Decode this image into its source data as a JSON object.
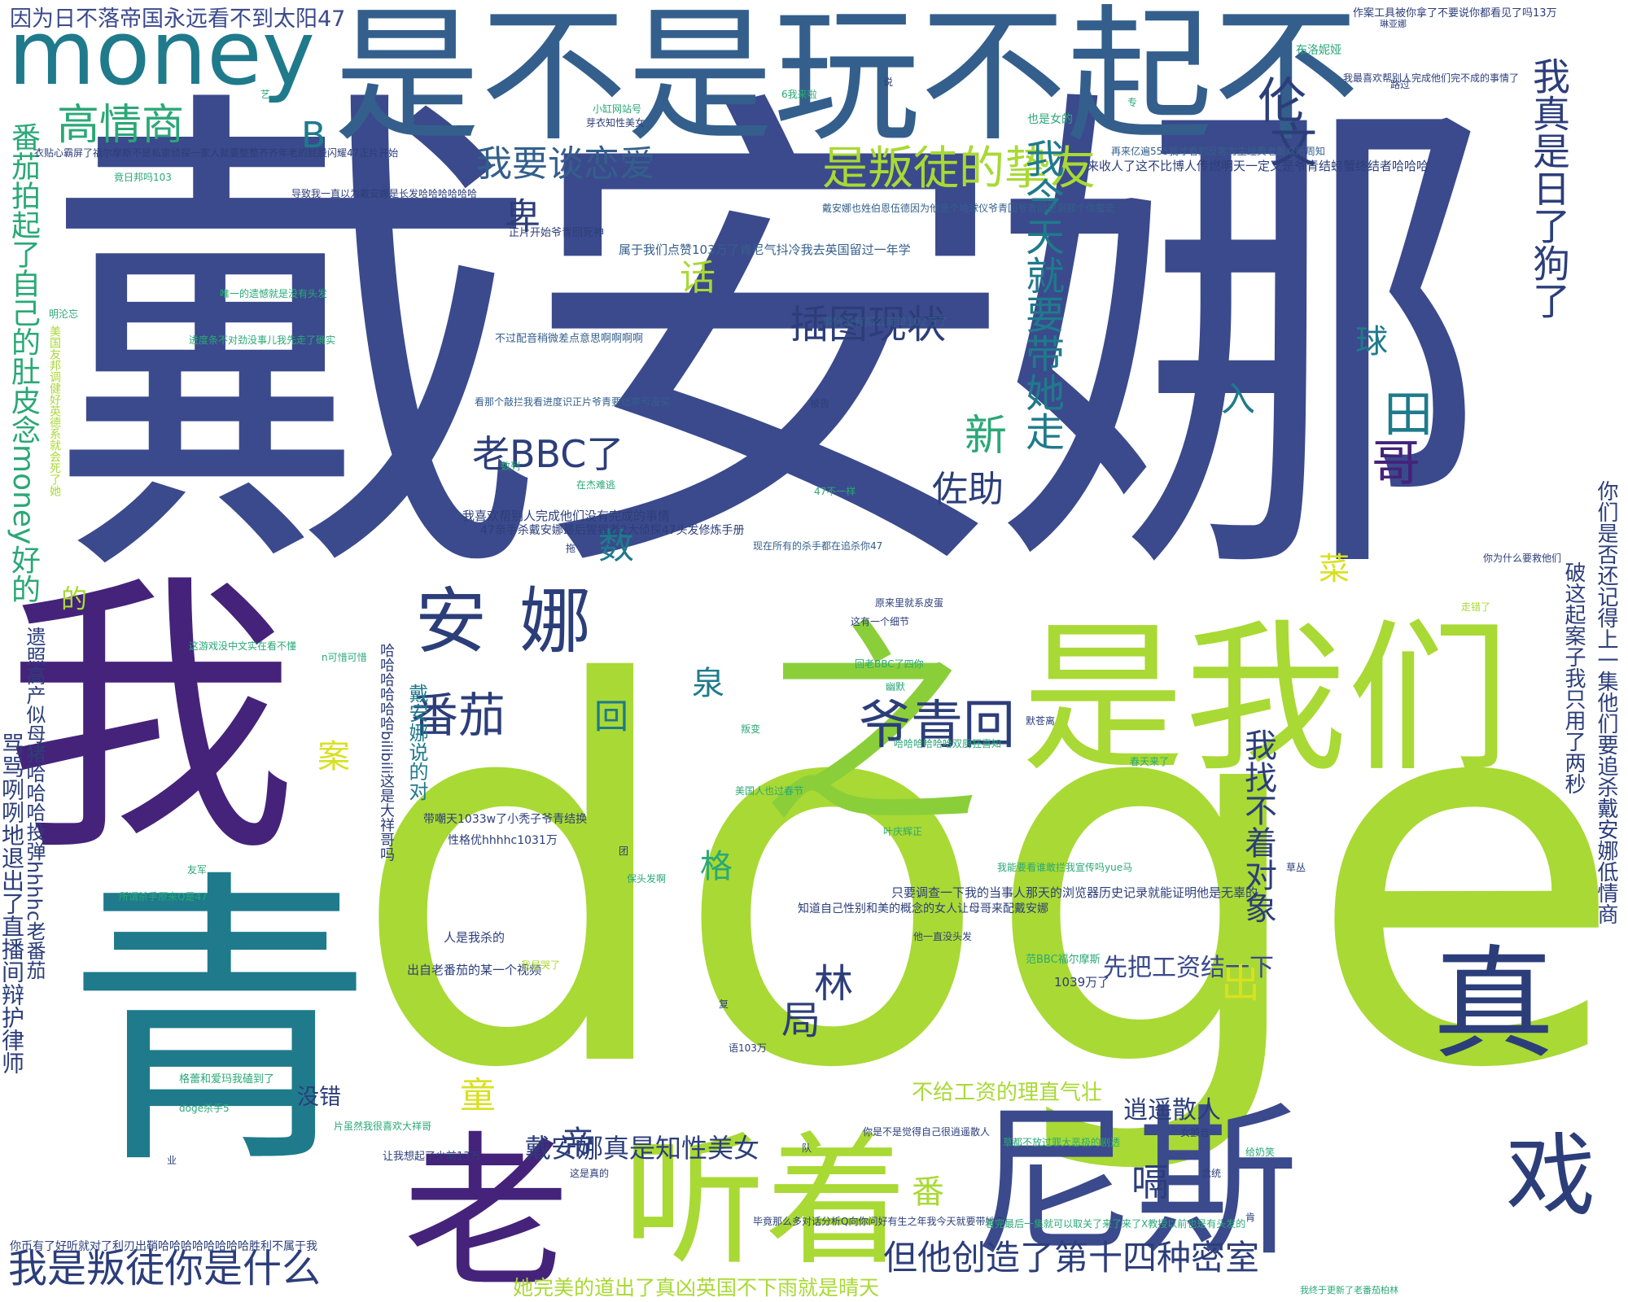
{
  "palette": {
    "indigo": "#3b4a8c",
    "navy": "#2c3e7a",
    "purple": "#45237a",
    "teal": "#1f7a8c",
    "green": "#2aa876",
    "lime": "#a9d934",
    "yellow": "#d9e021",
    "slate": "#345f8c"
  },
  "words": [
    {
      "text": "戴安娜",
      "color": "#3b4a8c"
    },
    {
      "text": "doge",
      "color": "#a9d934"
    },
    {
      "text": "我",
      "color": "#45237a"
    },
    {
      "text": "青",
      "color": "#1f7a8c"
    },
    {
      "text": "是不是玩不起不",
      "color": "#345f8c"
    },
    {
      "text": "是我们",
      "color": "#a9d934"
    },
    {
      "text": "之",
      "color": "#8acf3a"
    },
    {
      "text": "听着",
      "color": "#a9d934"
    },
    {
      "text": "尼斯",
      "color": "#3b4a8c"
    },
    {
      "text": "老",
      "color": "#45237a"
    },
    {
      "text": "money",
      "color": "#1f7a8c"
    },
    {
      "text": "真",
      "color": "#2c3e7a"
    },
    {
      "text": "戏",
      "color": "#2c3e7a"
    },
    {
      "text": "因为日不落帝国永远看不到太阳47",
      "color": "#3b4a8c"
    },
    {
      "text": "高情商",
      "color": "#2aa876"
    },
    {
      "text": "是叛徒的挚友",
      "color": "#a9d934"
    },
    {
      "text": "我要谈恋爱",
      "color": "#345f8c"
    },
    {
      "text": "安娜",
      "color": "#2c3e7a"
    },
    {
      "text": "番茄",
      "color": "#2c3e7a"
    },
    {
      "text": "爷青回",
      "color": "#2c3e7a"
    },
    {
      "text": "插图现状",
      "color": "#2c3e7a"
    },
    {
      "text": "老BBC了",
      "color": "#2c3e7a"
    },
    {
      "text": "佐助",
      "color": "#2c3e7a"
    },
    {
      "text": "我是叛徒你是什么",
      "color": "#2c3e7a"
    },
    {
      "text": "但他创造了第十四种密室",
      "color": "#2c3e7a"
    },
    {
      "text": "戴安娜真是知性美女",
      "color": "#2c3e7a"
    },
    {
      "text": "她完美的道出了真凶英国不下雨就是晴天",
      "color": "#a9d934"
    },
    {
      "text": "不给工资的理直气壮",
      "color": "#a9d934"
    },
    {
      "text": "先把工资结一下",
      "color": "#3b4a8c"
    },
    {
      "text": "逍遥散人",
      "color": "#2c3e7a"
    },
    {
      "text": "没错",
      "color": "#2c3e7a"
    },
    {
      "text": "伦",
      "color": "#2c3e7a"
    },
    {
      "text": "文",
      "color": "#2c3e7a"
    },
    {
      "text": "B",
      "color": "#1f7a8c"
    },
    {
      "text": "卑",
      "color": "#2c3e7a"
    },
    {
      "text": "话",
      "color": "#a9d934"
    },
    {
      "text": "新",
      "color": "#2aa876"
    },
    {
      "text": "数",
      "color": "#1f7a8c"
    },
    {
      "text": "的",
      "color": "#a9d934"
    },
    {
      "text": "菜",
      "color": "#d9e021"
    },
    {
      "text": "入",
      "color": "#1f7a8c"
    },
    {
      "text": "球",
      "color": "#1f7a8c"
    },
    {
      "text": "田",
      "color": "#1f7a8c"
    },
    {
      "text": "哥",
      "color": "#45237a"
    },
    {
      "text": "回",
      "color": "#1f7a8c"
    },
    {
      "text": "泉",
      "color": "#1f7a8c"
    },
    {
      "text": "案",
      "color": "#d9e021"
    },
    {
      "text": "格",
      "color": "#2aa876"
    },
    {
      "text": "尔",
      "color": "#a9d934"
    },
    {
      "text": "林",
      "color": "#2c3e7a"
    },
    {
      "text": "局",
      "color": "#2c3e7a"
    },
    {
      "text": "出",
      "color": "#d9e021"
    },
    {
      "text": "童",
      "color": "#d9e021"
    },
    {
      "text": "帝",
      "color": "#2c3e7a"
    },
    {
      "text": "番",
      "color": "#a9d934"
    },
    {
      "text": "嗝",
      "color": "#2c3e7a"
    },
    {
      "text": "我今天就要带她走",
      "color": "#1f7a8c"
    },
    {
      "text": "我找不着对象",
      "color": "#2c3e7a"
    },
    {
      "text": "我真是日了狗了",
      "color": "#2c3e7a"
    },
    {
      "text": "番茄拍起了自己的肚皮念money好的",
      "color": "#2aa876"
    },
    {
      "text": "骂骂咧咧地退出了直播间辩护律师",
      "color": "#2c3e7a"
    },
    {
      "text": "你们是否还记得上一集他们要追杀戴安娜低情商",
      "color": "#2c3e7a"
    },
    {
      "text": "破这起案子我只用了两秒",
      "color": "#2c3e7a"
    },
    {
      "text": "戴安娜说的对",
      "color": "#1f7a8c"
    },
    {
      "text": "属于我们点赞103万了肯尼气抖冷我去英国留过一年学",
      "color": "#345f8c"
    },
    {
      "text": "来收人了这不比博人传燃明天一定又是爷青结螃蟹终结者哈哈哈",
      "color": "#2c3e7a"
    },
    {
      "text": "衣贴心霸屏了福尔摩斯不是私家侦探一家人就要整整齐齐年老的屁股闪耀47正片开始",
      "color": "#2c3e7a"
    },
    {
      "text": "只要调查一下我的当事人那天的浏览器历史记录就能证明他是无辜的",
      "color": "#2c3e7a"
    },
    {
      "text": "你币有了好听就对了利刃出鞘哈哈哈哈哈哈哈哈胜利不属于我",
      "color": "#2c3e7a"
    },
    {
      "text": "知道自己性别和美的概念的女人让母哥来配戴安娜",
      "color": "#2c3e7a"
    },
    {
      "text": "我喜欢帮别人完成他们没有完成的事情",
      "color": "#2c3e7a"
    },
    {
      "text": "47亲手杀戴安娜最后猩猩者2大侦探47头发修炼手册",
      "color": "#2c3e7a"
    },
    {
      "text": "哈哈哈哈哈哈bilibili这是大祥哥吗",
      "color": "#2c3e7a"
    },
    {
      "text": "带嘲天1033w了小秃子爷青结换",
      "color": "#2c3e7a"
    },
    {
      "text": "性格优hhhhc1031万",
      "color": "#2c3e7a"
    },
    {
      "text": "遗照高产似母猪哈哈哈投弹hhhhc老番茄",
      "color": "#2c3e7a"
    },
    {
      "text": "出自老番茄的某一个视频",
      "color": "#2c3e7a"
    },
    {
      "text": "人是我杀的",
      "color": "#2c3e7a"
    },
    {
      "text": "1039万了",
      "color": "#2c3e7a"
    },
    {
      "text": "事情没有那么简单102万了",
      "color": "#345f8c"
    },
    {
      "text": "戴安娜也姓伯恩伍德因为他是个地球仪爷青回爷青回空洞那个你鳖走",
      "color": "#345f8c"
    },
    {
      "text": "看那个敲拦我看进度识正片爷青要结率亏没买",
      "color": "#345f8c"
    },
    {
      "text": "不过配音稍微差点意思啊啊啊啊",
      "color": "#345f8c"
    },
    {
      "text": "再来亿遍555我才看到反客为主经典老番众所周知",
      "color": "#345f8c"
    },
    {
      "text": "现在所有的杀手都在追杀你47",
      "color": "#345f8c"
    },
    {
      "text": "让我想起了少前13万",
      "color": "#2c3e7a"
    },
    {
      "text": "这是真的",
      "color": "#2c3e7a"
    },
    {
      "text": "你是不是觉得自己很逍遥散人",
      "color": "#2c3e7a"
    },
    {
      "text": "唯一的遗憾就是没有头发",
      "color": "#2aa876"
    },
    {
      "text": "进度条不对劲没事儿我先走了确实",
      "color": "#2aa876"
    },
    {
      "text": "这游戏没中文实在看不懂",
      "color": "#2aa876"
    },
    {
      "text": "所谓杀手原来Q是47",
      "color": "#2aa876"
    },
    {
      "text": "美国友邦调健好英德系就会死了她",
      "color": "#a9d934"
    },
    {
      "text": "格蕾和爱玛我磕到了",
      "color": "#2aa876"
    },
    {
      "text": "doge杀手5",
      "color": "#2aa876"
    },
    {
      "text": "片虽然我很喜欢大祥哥",
      "color": "#2aa876"
    },
    {
      "text": "我是哭了",
      "color": "#a9d934"
    },
    {
      "text": "我能要看谁敢拦我宣传吗yue马",
      "color": "#2aa876"
    },
    {
      "text": "范BBC福尔摩斯",
      "color": "#2aa876"
    },
    {
      "text": "叶庆辉正",
      "color": "#2aa876"
    },
    {
      "text": "美国人也过春节",
      "color": "#2aa876"
    },
    {
      "text": "哈哈哈哈哈哈双厨狂喜知",
      "color": "#2aa876"
    },
    {
      "text": "回老BBC了四你",
      "color": "#2aa876"
    },
    {
      "text": "这有一个细节",
      "color": "#2c3e7a"
    },
    {
      "text": "原来里就系皮蛋",
      "color": "#2c3e7a"
    },
    {
      "text": "默苍离",
      "color": "#2c3e7a"
    },
    {
      "text": "幽默",
      "color": "#2aa876"
    },
    {
      "text": "他一直没头发",
      "color": "#2c3e7a"
    },
    {
      "text": "草都不放过罪大恶极的剧透",
      "color": "#2aa876"
    },
    {
      "text": "毕竟那么多对话分析Q向你问好有生之年我今天就要带她走",
      "color": "#2c3e7a"
    },
    {
      "text": "看完最后一集就可以取关了来了来了X教授以前也是有头发的",
      "color": "#2aa876"
    },
    {
      "text": "我终于更新了老番茄柏林",
      "color": "#2aa876"
    },
    {
      "text": "你为什么要救他们",
      "color": "#2c3e7a"
    },
    {
      "text": "我最喜欢帮别人完成他们完不成的事情了",
      "color": "#2c3e7a"
    },
    {
      "text": "作案工具被你拿了不要说你都看见了吗13万",
      "color": "#2c3e7a"
    },
    {
      "text": "琳亚娜",
      "color": "#2c3e7a"
    },
    {
      "text": "布洛妮娅",
      "color": "#2aa876"
    },
    {
      "text": "也是女的",
      "color": "#2aa876"
    },
    {
      "text": "6我来啦",
      "color": "#2aa876"
    },
    {
      "text": "小缸网站号",
      "color": "#2aa876"
    },
    {
      "text": "芽衣知性美女",
      "color": "#2c3e7a"
    },
    {
      "text": "竟日邦吗103",
      "color": "#2aa876"
    },
    {
      "text": "导致我一直以为戴安娜是长发哈哈哈哈哈哈",
      "color": "#2c3e7a"
    },
    {
      "text": "正片开始爷青回死神",
      "color": "#2c3e7a"
    },
    {
      "text": "明沦忘",
      "color": "#2aa876"
    },
    {
      "text": "n可惜可惜",
      "color": "#2aa876"
    },
    {
      "text": "被告",
      "color": "#2c3e7a"
    },
    {
      "text": "数列",
      "color": "#2aa876"
    },
    {
      "text": "在杰难逃",
      "color": "#2aa876"
    },
    {
      "text": "拖",
      "color": "#2c3e7a"
    },
    {
      "text": "友军",
      "color": "#2aa876"
    },
    {
      "text": "保头发啊",
      "color": "#2aa876"
    },
    {
      "text": "叛变",
      "color": "#2aa876"
    },
    {
      "text": "春天来了",
      "color": "#2aa876"
    },
    {
      "text": "女颤音",
      "color": "#2c3e7a"
    },
    {
      "text": "念统",
      "color": "#2c3e7a"
    },
    {
      "text": "给奶笑",
      "color": "#2aa876"
    },
    {
      "text": "草丛",
      "color": "#2c3e7a"
    },
    {
      "text": "路过",
      "color": "#2c3e7a"
    },
    {
      "text": "语103万",
      "color": "#2c3e7a"
    },
    {
      "text": "复",
      "color": "#2c3e7a"
    },
    {
      "text": "队",
      "color": "#2c3e7a"
    },
    {
      "text": "肯",
      "color": "#2c3e7a"
    },
    {
      "text": "业",
      "color": "#2c3e7a"
    },
    {
      "text": "团",
      "color": "#2c3e7a"
    },
    {
      "text": "说",
      "color": "#2c3e7a"
    },
    {
      "text": "专",
      "color": "#2aa876"
    },
    {
      "text": "艺",
      "color": "#2aa876"
    },
    {
      "text": "47不一样",
      "color": "#2aa876"
    },
    {
      "text": "走错了",
      "color": "#a9d934"
    }
  ]
}
